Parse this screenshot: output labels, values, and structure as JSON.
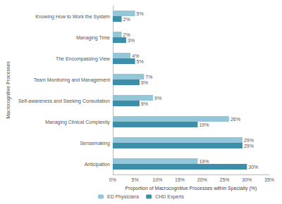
{
  "chart_data": {
    "type": "bar",
    "orientation": "horizontal",
    "x_label": "Proportion of Macrocognitive Processes within Specialty (%)",
    "y_label": "Macrocognitive Processes",
    "categories": [
      "Knowing How to Work the System",
      "Managing Time",
      "The Encompassing View",
      "Team Monitoring and Management",
      "Self-awareness and Seeking Consultation",
      "Managing Clinical Complexity",
      "Sensemaking",
      "Anticipation"
    ],
    "series": [
      {
        "name": "ED Physicians",
        "color": "#93c6d8",
        "values": [
          5,
          2,
          4,
          7,
          9,
          26,
          29,
          19
        ],
        "value_labels": [
          "5%",
          "2%",
          "4%",
          "7%",
          "9%",
          "26%",
          "29%",
          "19%"
        ]
      },
      {
        "name": "CHD Experts",
        "color": "#3d8ea8",
        "values": [
          2,
          3,
          5,
          6,
          6,
          19,
          29,
          30
        ],
        "value_labels": [
          "2%",
          "3%",
          "5%",
          "6%",
          "6%",
          "19%",
          "29%",
          "30%"
        ]
      }
    ],
    "xlim": [
      0,
      35
    ],
    "xticks": [
      {
        "value": 0,
        "label": "0%"
      },
      {
        "value": 5,
        "label": "5%"
      },
      {
        "value": 10,
        "label": "10%"
      },
      {
        "value": 15,
        "label": "15%"
      },
      {
        "value": 20,
        "label": "20%"
      },
      {
        "value": 25,
        "label": "25%"
      },
      {
        "value": 30,
        "label": "30%"
      },
      {
        "value": 35,
        "label": "35%"
      }
    ],
    "grid": false,
    "legend": "bottom",
    "data_labels": true
  }
}
